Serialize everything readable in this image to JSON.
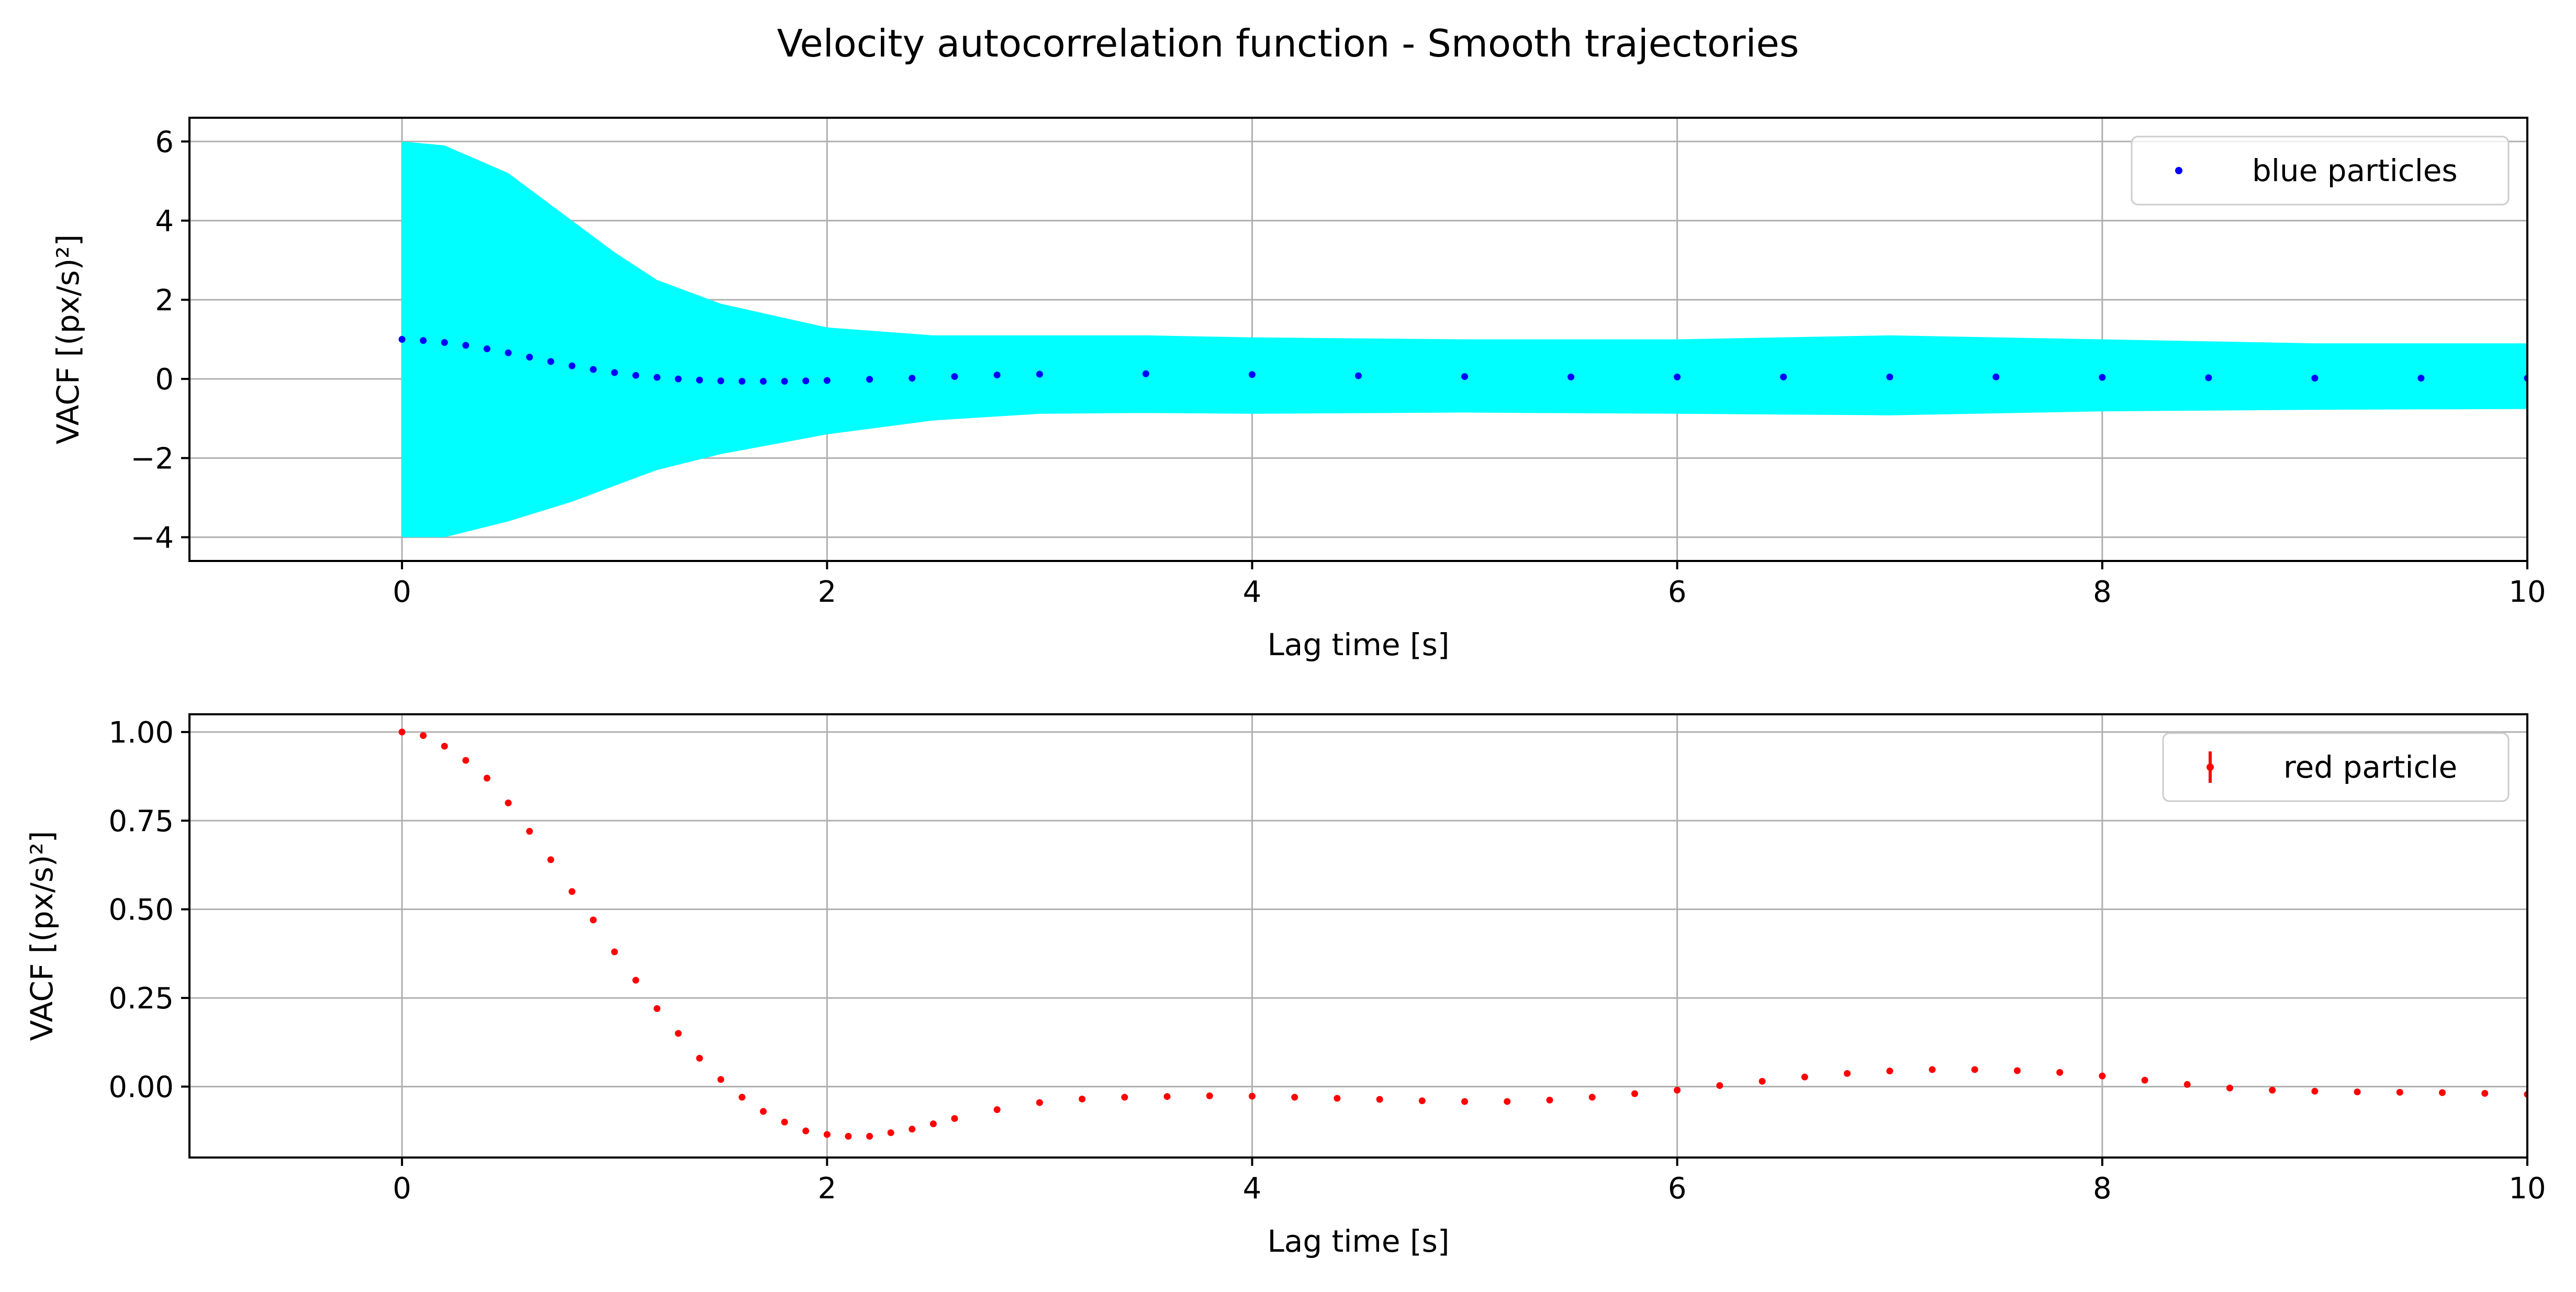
{
  "figure": {
    "title": "Velocity autocorrelation function - Smooth trajectories"
  },
  "chart_data": [
    {
      "type": "scatter",
      "xlabel": "Lag time [s]",
      "ylabel": "VACF [(px/s)²]",
      "xlim": [
        -1,
        10
      ],
      "ylim": [
        -4.6,
        6.6
      ],
      "xticks": [
        "0",
        "2",
        "4",
        "6",
        "8",
        "10"
      ],
      "xtick_values": [
        0,
        2,
        4,
        6,
        8,
        10
      ],
      "yticks": [
        "−4",
        "−2",
        "0",
        "2",
        "4",
        "6"
      ],
      "ytick_values": [
        -4,
        -2,
        0,
        2,
        4,
        6
      ],
      "grid": true,
      "legend_position": "top-right",
      "colors": {
        "band": "#00ffff",
        "points": "#0000ff"
      },
      "series": [
        {
          "name": "blue particles",
          "marker": "dot",
          "x": [
            0,
            0.1,
            0.2,
            0.3,
            0.4,
            0.5,
            0.6,
            0.7,
            0.8,
            0.9,
            1.0,
            1.1,
            1.2,
            1.3,
            1.4,
            1.5,
            1.6,
            1.7,
            1.8,
            1.9,
            2.0,
            2.2,
            2.4,
            2.6,
            2.8,
            3.0,
            3.5,
            4.0,
            4.5,
            5.0,
            5.5,
            6.0,
            6.5,
            7.0,
            7.5,
            8.0,
            8.5,
            9.0,
            9.5,
            10.0
          ],
          "y": [
            1.0,
            0.97,
            0.92,
            0.85,
            0.76,
            0.66,
            0.55,
            0.44,
            0.33,
            0.24,
            0.16,
            0.09,
            0.04,
            0.0,
            -0.03,
            -0.05,
            -0.06,
            -0.06,
            -0.06,
            -0.05,
            -0.04,
            -0.01,
            0.02,
            0.06,
            0.1,
            0.12,
            0.13,
            0.11,
            0.08,
            0.06,
            0.05,
            0.05,
            0.05,
            0.05,
            0.05,
            0.04,
            0.03,
            0.02,
            0.02,
            0.02
          ]
        }
      ],
      "band": {
        "x": [
          0,
          0.2,
          0.5,
          0.8,
          1.0,
          1.2,
          1.5,
          2.0,
          2.5,
          3.0,
          3.5,
          4.0,
          5.0,
          6.0,
          7.0,
          8.0,
          9.0,
          10.0
        ],
        "upper": [
          6.0,
          5.9,
          5.2,
          4.0,
          3.2,
          2.5,
          1.9,
          1.3,
          1.1,
          1.1,
          1.1,
          1.05,
          1.0,
          1.0,
          1.1,
          1.0,
          0.9,
          0.9
        ],
        "lower": [
          -4.0,
          -4.0,
          -3.6,
          -3.1,
          -2.7,
          -2.3,
          -1.9,
          -1.4,
          -1.05,
          -0.88,
          -0.86,
          -0.88,
          -0.85,
          -0.88,
          -0.92,
          -0.82,
          -0.78,
          -0.76
        ]
      }
    },
    {
      "type": "scatter",
      "xlabel": "Lag time [s]",
      "ylabel": "VACF [(px/s)²]",
      "xlim": [
        -1,
        10
      ],
      "ylim": [
        -0.2,
        1.05
      ],
      "xticks": [
        "0",
        "2",
        "4",
        "6",
        "8",
        "10"
      ],
      "xtick_values": [
        0,
        2,
        4,
        6,
        8,
        10
      ],
      "yticks": [
        "0.00",
        "0.25",
        "0.50",
        "0.75",
        "1.00"
      ],
      "ytick_values": [
        0,
        0.25,
        0.5,
        0.75,
        1.0
      ],
      "grid": true,
      "legend_position": "top-right",
      "colors": {
        "points": "#ff0000"
      },
      "series": [
        {
          "name": "red particle",
          "marker": "dot",
          "x": [
            0,
            0.1,
            0.2,
            0.3,
            0.4,
            0.5,
            0.6,
            0.7,
            0.8,
            0.9,
            1.0,
            1.1,
            1.2,
            1.3,
            1.4,
            1.5,
            1.6,
            1.7,
            1.8,
            1.9,
            2.0,
            2.1,
            2.2,
            2.3,
            2.4,
            2.5,
            2.6,
            2.8,
            3.0,
            3.2,
            3.4,
            3.6,
            3.8,
            4.0,
            4.2,
            4.4,
            4.6,
            4.8,
            5.0,
            5.2,
            5.4,
            5.6,
            5.8,
            6.0,
            6.2,
            6.4,
            6.6,
            6.8,
            7.0,
            7.2,
            7.4,
            7.6,
            7.8,
            8.0,
            8.2,
            8.4,
            8.6,
            8.8,
            9.0,
            9.2,
            9.4,
            9.6,
            9.8,
            10.0
          ],
          "y": [
            1.0,
            0.99,
            0.96,
            0.92,
            0.87,
            0.8,
            0.72,
            0.64,
            0.55,
            0.47,
            0.38,
            0.3,
            0.22,
            0.15,
            0.08,
            0.02,
            -0.03,
            -0.07,
            -0.1,
            -0.125,
            -0.135,
            -0.14,
            -0.14,
            -0.13,
            -0.12,
            -0.105,
            -0.09,
            -0.065,
            -0.045,
            -0.035,
            -0.03,
            -0.028,
            -0.026,
            -0.027,
            -0.03,
            -0.033,
            -0.036,
            -0.04,
            -0.042,
            -0.042,
            -0.038,
            -0.03,
            -0.02,
            -0.01,
            0.003,
            0.015,
            0.027,
            0.037,
            0.044,
            0.048,
            0.048,
            0.045,
            0.04,
            0.03,
            0.018,
            0.006,
            -0.004,
            -0.01,
            -0.013,
            -0.015,
            -0.016,
            -0.017,
            -0.019,
            -0.022
          ]
        }
      ]
    }
  ]
}
